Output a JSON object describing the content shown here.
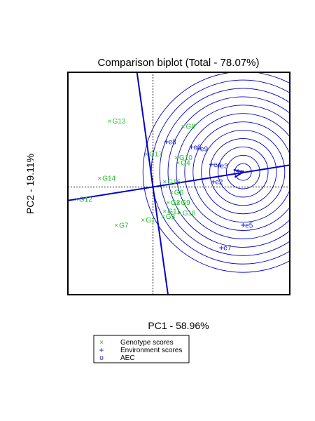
{
  "chart_data": {
    "type": "scatter",
    "title": "Comparison biplot (Total - 78.07%)",
    "xlabel": "PC1 - 58.96%",
    "ylabel": "PC2 - 19.11%",
    "xlim": [
      -2.55,
      4.1
    ],
    "ylim": [
      -3.1,
      3.3
    ],
    "colors": {
      "genotype": "#22c02a",
      "environment": "#1a1acc",
      "axes": "#0000cc"
    },
    "genotypes": [
      {
        "label": "G13",
        "x": -1.3,
        "y": 1.9
      },
      {
        "label": "G8",
        "x": 0.9,
        "y": 1.75
      },
      {
        "label": "G17",
        "x": -0.2,
        "y": 0.95
      },
      {
        "label": "G10",
        "x": 0.7,
        "y": 0.85
      },
      {
        "label": "G4",
        "x": 0.75,
        "y": 0.7
      },
      {
        "label": "G14",
        "x": -1.6,
        "y": 0.25
      },
      {
        "label": "G16",
        "x": 0.35,
        "y": 0.15
      },
      {
        "label": "G12",
        "x": -2.3,
        "y": -0.35
      },
      {
        "label": "G6",
        "x": 0.55,
        "y": -0.15
      },
      {
        "label": "G2",
        "x": 0.45,
        "y": -0.45
      },
      {
        "label": "G9",
        "x": 0.75,
        "y": -0.45
      },
      {
        "label": "G11",
        "x": 0.35,
        "y": -0.7
      },
      {
        "label": "G18",
        "x": 0.8,
        "y": -0.75
      },
      {
        "label": "G3",
        "x": 0.3,
        "y": -0.85
      },
      {
        "label": "G1",
        "x": -0.3,
        "y": -0.95
      },
      {
        "label": "G7",
        "x": -1.1,
        "y": -1.1
      }
    ],
    "environments": [
      {
        "label": "e8",
        "x": 0.4,
        "y": 1.3
      },
      {
        "label": "e6",
        "x": 1.15,
        "y": 1.15
      },
      {
        "label": "e9",
        "x": 1.35,
        "y": 1.1
      },
      {
        "label": "e4",
        "x": 1.75,
        "y": 0.65
      },
      {
        "label": "e3",
        "x": 1.95,
        "y": 0.6
      },
      {
        "label": "e",
        "x": 2.55,
        "y": 0.45
      },
      {
        "label": "e2",
        "x": 1.8,
        "y": 0.15
      },
      {
        "label": "e5",
        "x": 2.7,
        "y": -1.1
      },
      {
        "label": "e7",
        "x": 2.05,
        "y": -1.75
      }
    ],
    "aec": {
      "origin": [
        0,
        0
      ],
      "direction_point": [
        3.9,
        0.6
      ],
      "arrow_tip": [
        2.7,
        0.43
      ],
      "circle_center": [
        2.7,
        0.43
      ],
      "circle_radii": [
        0.25,
        0.5,
        0.75,
        1.0,
        1.25,
        1.5,
        1.75,
        2.0,
        2.25,
        2.5,
        2.75,
        3.0
      ],
      "perpendicular": [
        [
          -0.48,
          3.3
        ],
        [
          0.45,
          -3.1
        ]
      ],
      "extended_axis": [
        [
          -2.55,
          -0.39
        ],
        [
          4.1,
          0.63
        ]
      ]
    },
    "legend": {
      "placement": "bottom",
      "entries": [
        {
          "symbol": "×",
          "label": "Genotype scores",
          "color": "#22c02a"
        },
        {
          "symbol": "+",
          "label": "Environment scores",
          "color": "#1a1acc"
        },
        {
          "symbol": "o",
          "label": "AEC",
          "color": "#1a1acc"
        }
      ]
    }
  }
}
